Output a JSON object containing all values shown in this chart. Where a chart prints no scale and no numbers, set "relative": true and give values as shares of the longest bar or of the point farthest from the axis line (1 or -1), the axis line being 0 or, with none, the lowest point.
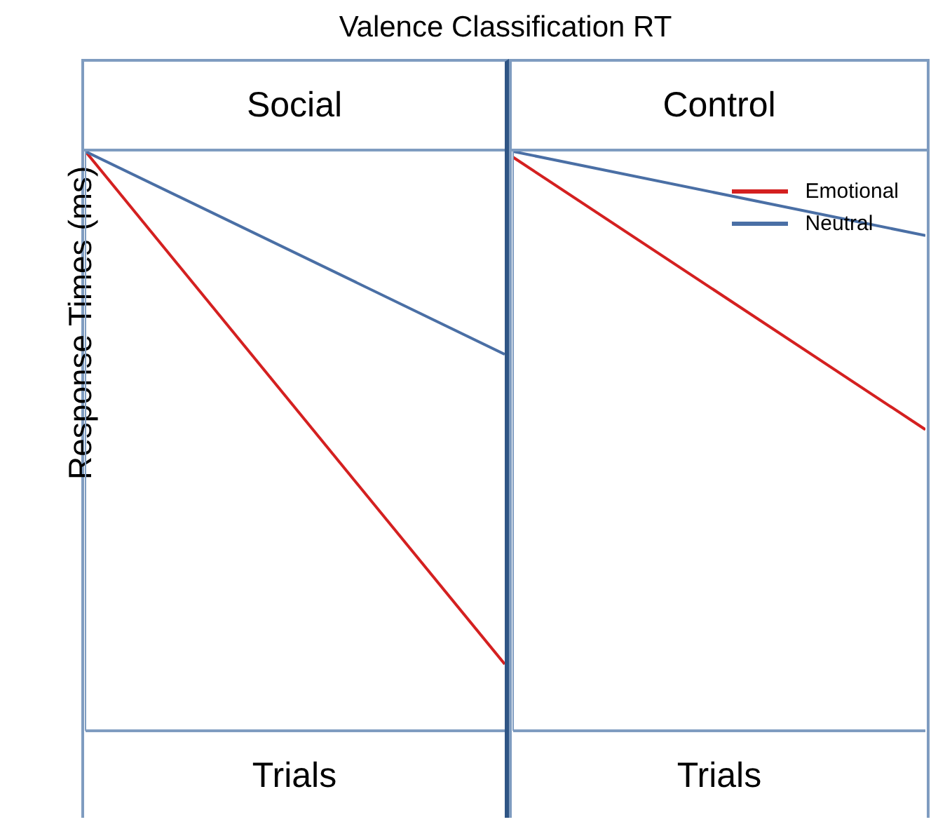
{
  "chart_data": [
    {
      "type": "line",
      "title": "Valence Classification RT",
      "subtitle": "Social",
      "ylabel": "Response Times (ms)",
      "xlabel": "Trials",
      "categories": [
        null,
        null
      ],
      "relative": true,
      "legend": false,
      "series": [
        {
          "color": "#d42020",
          "values": [
            1,
            0.115
          ]
        },
        {
          "color": "#4a6fa5",
          "values": [
            1,
            0.65
          ]
        }
      ]
    },
    {
      "type": "line",
      "subtitle": "Control",
      "xlabel": "Trials",
      "categories": [
        null,
        null
      ],
      "relative": true,
      "legend": "top right",
      "series": [
        {
          "name": "Emotional",
          "color": "#d42020",
          "values": [
            0.99,
            0.52
          ]
        },
        {
          "name": "Neutral",
          "color": "#4a6fa5",
          "values": [
            1,
            0.855
          ]
        }
      ]
    }
  ]
}
